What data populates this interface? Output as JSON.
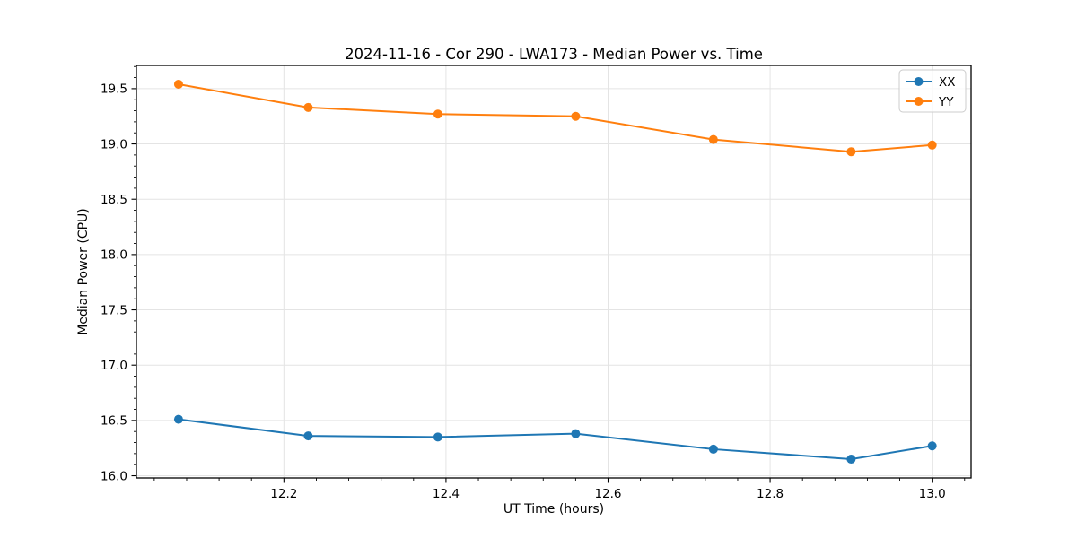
{
  "chart_data": {
    "type": "line",
    "title": "2024-11-16 - Cor 290 - LWA173 - Median Power vs. Time",
    "xlabel": "UT Time (hours)",
    "ylabel": "Median Power (CPU)",
    "x": [
      12.07,
      12.23,
      12.39,
      12.56,
      12.73,
      12.9,
      13.0
    ],
    "series": [
      {
        "name": "XX",
        "color": "#1f77b4",
        "values": [
          16.51,
          16.36,
          16.35,
          16.38,
          16.24,
          16.15,
          16.27
        ]
      },
      {
        "name": "YY",
        "color": "#ff7f0e",
        "values": [
          19.54,
          19.33,
          19.27,
          19.25,
          19.04,
          18.93,
          18.99
        ]
      }
    ],
    "xlim": [
      12.018,
      13.048
    ],
    "ylim": [
      15.98,
      19.71
    ],
    "xticks": [
      "12.2",
      "12.4",
      "12.6",
      "12.8",
      "13.0"
    ],
    "yticks": [
      "16.0",
      "16.5",
      "17.0",
      "17.5",
      "18.0",
      "18.5",
      "19.0",
      "19.5"
    ],
    "x_minor_step": 0.04,
    "y_minor_step": 0.1,
    "grid": true,
    "grid_color": "#e4e4e4",
    "spine_color": "#000000",
    "legend_position": "upper right",
    "marker": "circle",
    "marker_size": 5,
    "line_width": 2
  }
}
